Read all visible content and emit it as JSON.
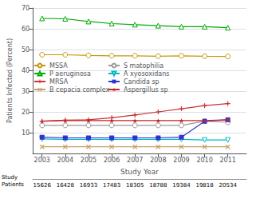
{
  "chart_data": {
    "type": "line",
    "xlabel": "Study Year",
    "ylabel": "Patients Infected (Percent)",
    "x": [
      2003,
      2004,
      2005,
      2006,
      2007,
      2008,
      2009,
      2010,
      2011
    ],
    "xlim": [
      2002.6,
      2011.8
    ],
    "xticks": [
      2003,
      2004,
      2005,
      2006,
      2007,
      2008,
      2009,
      2010,
      2011
    ],
    "ylim": [
      0,
      70
    ],
    "yticks": [
      10,
      20,
      30,
      40,
      50,
      60,
      70
    ],
    "grid": true,
    "legend": "left",
    "series": [
      {
        "name": "MSSA",
        "color": "#c8960a",
        "marker": "circle-open",
        "values": [
          47.5,
          47.5,
          47.2,
          47.0,
          47.0,
          46.8,
          47.0,
          46.8,
          46.7
        ]
      },
      {
        "name": "P aeruginosa",
        "color": "#00aa00",
        "marker": "triangle-up-open",
        "values": [
          65.0,
          64.8,
          63.5,
          62.5,
          62.0,
          61.5,
          61.0,
          61.0,
          60.5
        ]
      },
      {
        "name": "MRSA",
        "color": "#cc3333",
        "marker": "plus",
        "values": [
          15.5,
          16.0,
          16.2,
          17.2,
          18.5,
          20.0,
          21.5,
          23.0,
          24.0
        ]
      },
      {
        "name": "B cepacia complex",
        "color": "#c8a060",
        "marker": "x",
        "values": [
          3.2,
          3.2,
          3.2,
          3.2,
          3.2,
          3.2,
          3.2,
          3.2,
          3.2
        ]
      },
      {
        "name": "S matophilia",
        "color": "#999999",
        "marker": "circle-open",
        "values": [
          13.5,
          13.5,
          13.5,
          13.5,
          13.5,
          13.5,
          13.5,
          15.5,
          15.0
        ]
      },
      {
        "name": "A xyosoxidans",
        "color": "#00bbcc",
        "marker": "triangle-down-open",
        "values": [
          7.0,
          6.8,
          6.8,
          6.8,
          6.8,
          6.8,
          6.8,
          6.5,
          6.5
        ]
      },
      {
        "name": "Candida sp",
        "color": "#3333cc",
        "marker": "square",
        "values": [
          7.8,
          7.5,
          7.5,
          7.5,
          7.5,
          7.5,
          7.8,
          15.5,
          16.2
        ]
      },
      {
        "name": "Aspergillus sp",
        "color": "#cc2222",
        "marker": "star",
        "values": [
          15.5,
          15.8,
          15.8,
          15.8,
          15.8,
          15.8,
          15.8,
          15.8,
          16.2
        ]
      }
    ],
    "study_patients": [
      15626,
      16428,
      16933,
      17483,
      18305,
      18788,
      19384,
      19818,
      20534
    ],
    "annotations": [
      "Study",
      "Patients"
    ]
  }
}
